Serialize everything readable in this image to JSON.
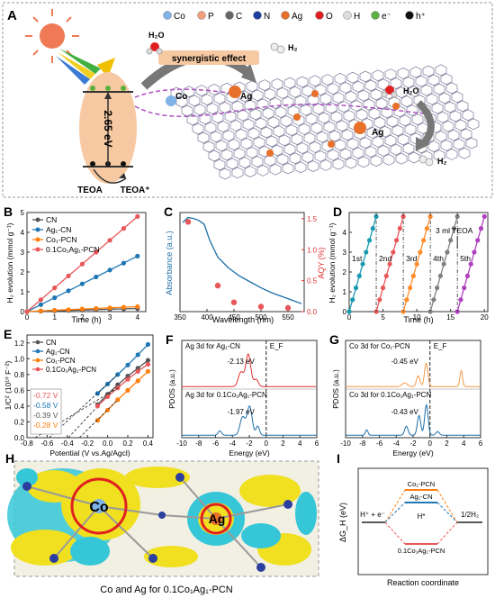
{
  "panel_letters": {
    "A": "A",
    "B": "B",
    "C": "C",
    "D": "D",
    "E": "E",
    "F": "F",
    "G": "G",
    "H": "H",
    "I": "I"
  },
  "colors": {
    "cn": "#555555",
    "ag1": "#1f77b4",
    "co1": "#ff7f0e",
    "coag": "#e8575a",
    "blue": "#1b6fa8",
    "red": "#e03030",
    "cyan": "#2ab0c6",
    "yellow": "#f0e020",
    "orange": "#f39a4a",
    "purple": "#b040c0",
    "gray": "#808080",
    "green": "#2a9a5a"
  },
  "panel_a": {
    "legend": [
      {
        "symbol": "sphere-icon",
        "color": "#7fb2e6",
        "label": "Co"
      },
      {
        "symbol": "sphere-icon",
        "color": "#f2a07b",
        "label": "P"
      },
      {
        "symbol": "sphere-icon",
        "color": "#666666",
        "label": "C"
      },
      {
        "symbol": "sphere-icon",
        "color": "#1f3f9f",
        "label": "N"
      },
      {
        "symbol": "sphere-icon",
        "color": "#e8702a",
        "label": "Ag"
      },
      {
        "symbol": "sphere-icon",
        "color": "#e02020",
        "label": "O"
      },
      {
        "symbol": "sphere-icon",
        "color": "#dddddd",
        "label": "H"
      },
      {
        "symbol": "sphere-icon",
        "color": "#5ab040",
        "label": "e⁻"
      },
      {
        "symbol": "sphere-icon",
        "color": "#111111",
        "label": "h⁺"
      }
    ],
    "band_gap": "2.65 eV",
    "teoa": "TEOA",
    "teoa_plus": "TEOA⁺",
    "synergy": "synergistic effect",
    "h2o_1": "H₂O",
    "h2_1": "H₂",
    "h2o_2": "H₂O",
    "h2_2": "H₂",
    "co_label": "Co",
    "ag_label_1": "Ag",
    "ag_label_2": "Ag"
  },
  "panel_i": {
    "ylabel": "ΔG_H (eV)",
    "xlabel": "Reaction coordinate",
    "left": "H⁺ + e⁻",
    "right": "1/2H₂",
    "mid": "H*",
    "levels": [
      {
        "name": "Co₁-PCN",
        "color": "#ff7f0e"
      },
      {
        "name": "Ag₁-CN",
        "color": "#1f77b4"
      },
      {
        "name": "0.1Co₁Ag₁-PCN",
        "color": "#e8575a"
      }
    ]
  },
  "panel_h": {
    "co": "Co",
    "ag": "Ag",
    "caption": "Co and Ag for  0.1Co₁Ag₁-PCN"
  },
  "chart_data": [
    {
      "id": "B",
      "type": "line",
      "xlabel": "Time (h)",
      "ylabel": "H₂ evolution (mmol g⁻¹)",
      "xlim": [
        0,
        4.3
      ],
      "ylim": [
        0,
        5
      ],
      "xticks": [
        0,
        1,
        2,
        3,
        4
      ],
      "yticks": [
        0,
        1,
        2,
        3,
        4,
        5
      ],
      "x": [
        0,
        0.5,
        1,
        1.5,
        2,
        2.5,
        3,
        3.5,
        4
      ],
      "legend_position": "top-left",
      "series": [
        {
          "name": "CN",
          "color": "#555555",
          "values": [
            0,
            0.02,
            0.04,
            0.06,
            0.08,
            0.1,
            0.12,
            0.14,
            0.16
          ]
        },
        {
          "name": "Ag₁-CN",
          "color": "#1f77b4",
          "values": [
            0,
            0.35,
            0.7,
            1.05,
            1.4,
            1.75,
            2.1,
            2.45,
            2.8
          ]
        },
        {
          "name": "Co₁-PCN",
          "color": "#ff7f0e",
          "values": [
            0,
            0.04,
            0.07,
            0.1,
            0.13,
            0.16,
            0.19,
            0.22,
            0.25
          ]
        },
        {
          "name": "0.1Co₁Ag₁-PCN",
          "color": "#e8575a",
          "values": [
            0,
            0.6,
            1.2,
            1.8,
            2.4,
            3.0,
            3.6,
            4.2,
            4.8
          ]
        }
      ]
    },
    {
      "id": "C",
      "type": "line",
      "xlabel": "Wavelength (nm)",
      "ylabel": "Absorbance (a.u.)",
      "ylabel_right": "AQY (%)",
      "xlim": [
        350,
        580
      ],
      "y2lim": [
        0,
        1.6
      ],
      "xticks": [
        350,
        400,
        450,
        500,
        550
      ],
      "y2ticks": [
        0,
        0.5,
        1.0,
        1.5
      ],
      "curve_x": [
        355,
        365,
        375,
        385,
        395,
        405,
        420,
        440,
        460,
        480,
        500,
        520,
        540,
        560,
        575
      ],
      "curve_y": [
        0.9,
        0.95,
        0.94,
        0.92,
        0.88,
        0.72,
        0.55,
        0.44,
        0.36,
        0.3,
        0.24,
        0.19,
        0.15,
        0.11,
        0.08
      ],
      "aqy_points": [
        [
          365,
          1.45
        ],
        [
          420,
          0.42
        ],
        [
          450,
          0.15
        ],
        [
          500,
          0.08
        ],
        [
          550,
          0.06
        ]
      ]
    },
    {
      "id": "D",
      "type": "line",
      "xlabel": "Time (h)",
      "ylabel": "H₂ evolution (mmol g⁻¹)",
      "xlim": [
        0,
        20.5
      ],
      "ylim": [
        0,
        5
      ],
      "xticks": [
        0,
        5,
        10,
        15,
        20
      ],
      "yticks": [
        0,
        1,
        2,
        3,
        4
      ],
      "annotation": "3 ml TEOA",
      "cycles": [
        {
          "name": "1st",
          "color": "#1a9ab0",
          "start": 0
        },
        {
          "name": "2nd",
          "color": "#e8575a",
          "start": 4
        },
        {
          "name": "3rd",
          "color": "#ff8c2a",
          "start": 8
        },
        {
          "name": "4th",
          "color": "#808080",
          "start": 12
        },
        {
          "name": "5th",
          "color": "#b040c0",
          "start": 16
        }
      ],
      "cycle_x": [
        0,
        0.5,
        1,
        1.5,
        2,
        2.5,
        3,
        3.5,
        4
      ],
      "cycle_values": [
        0,
        0.6,
        1.2,
        1.8,
        2.4,
        3.0,
        3.6,
        4.2,
        4.8
      ]
    },
    {
      "id": "E",
      "type": "line",
      "xlabel": "Potential (V vs.Ag/Agcl)",
      "ylabel": "1/C² (10¹⁰ F⁻²)",
      "xlim": [
        -0.8,
        0.45
      ],
      "ylim": [
        0,
        1.3
      ],
      "xticks": [
        -0.8,
        -0.6,
        -0.4,
        -0.2,
        0.0,
        0.2,
        0.4
      ],
      "yticks": [
        0.0,
        0.2,
        0.4,
        0.6,
        0.8,
        1.0,
        1.2
      ],
      "legend_position": "top-left",
      "intercepts": [
        {
          "label": "-0.72 V",
          "color": "#e8575a"
        },
        {
          "label": "-0.58 V",
          "color": "#1f77b4"
        },
        {
          "label": "-0.39 V",
          "color": "#555555"
        },
        {
          "label": "-0.28 V",
          "color": "#ff7f0e"
        }
      ],
      "series": [
        {
          "name": "CN",
          "color": "#555555",
          "x0": -0.39,
          "x": [
            -0.1,
            0,
            0.1,
            0.2,
            0.3,
            0.4
          ],
          "values": [
            0.42,
            0.55,
            0.67,
            0.78,
            0.88,
            0.98
          ]
        },
        {
          "name": "Ag₁-CN",
          "color": "#1f77b4",
          "x0": -0.58,
          "x": [
            -0.1,
            0,
            0.1,
            0.2,
            0.3,
            0.4
          ],
          "values": [
            0.56,
            0.68,
            0.8,
            0.92,
            1.05,
            1.18
          ]
        },
        {
          "name": "Co₁-PCN",
          "color": "#ff7f0e",
          "x0": -0.28,
          "x": [
            -0.1,
            0,
            0.1,
            0.2,
            0.3,
            0.4
          ],
          "values": [
            0.22,
            0.35,
            0.48,
            0.6,
            0.72,
            0.84
          ]
        },
        {
          "name": "0.1Co₁Ag₁-PCN",
          "color": "#e8575a",
          "x0": -0.72,
          "x": [
            -0.1,
            0,
            0.1,
            0.2,
            0.3,
            0.4
          ],
          "values": [
            0.4,
            0.52,
            0.63,
            0.74,
            0.84,
            0.93
          ]
        }
      ]
    },
    {
      "id": "F",
      "type": "line",
      "xlabel": "Energy (eV)",
      "ylabel": "PDOS (a.u.)",
      "xlim": [
        -10,
        6
      ],
      "xticks": [
        -10,
        -8,
        -6,
        -4,
        -2,
        0,
        2,
        4,
        6
      ],
      "fermi": "E_F",
      "upper_label": "Ag 3d for Ag₁-CN",
      "upper_peak": "-2.13 eV",
      "upper_color": "#e03030",
      "lower_label": "Ag 3d for 0.1Co₁Ag₁-PCN",
      "lower_peak": "-1.97 eV",
      "lower_color": "#1b6fa8"
    },
    {
      "id": "G",
      "type": "line",
      "xlabel": "Energy (eV)",
      "ylabel": "PDOS (a.u.)",
      "xlim": [
        -10,
        6
      ],
      "xticks": [
        -10,
        -8,
        -6,
        -4,
        -2,
        0,
        2,
        4,
        6
      ],
      "fermi": "E_F",
      "upper_label": "Co 3d for Co₁-PCN",
      "upper_peak": "-0.45 eV",
      "upper_color": "#f39a4a",
      "lower_label": "Co 3d for 0.1Co₁Ag₁-PCN",
      "lower_peak": "-0.43 eV",
      "lower_color": "#1b6fa8"
    }
  ]
}
